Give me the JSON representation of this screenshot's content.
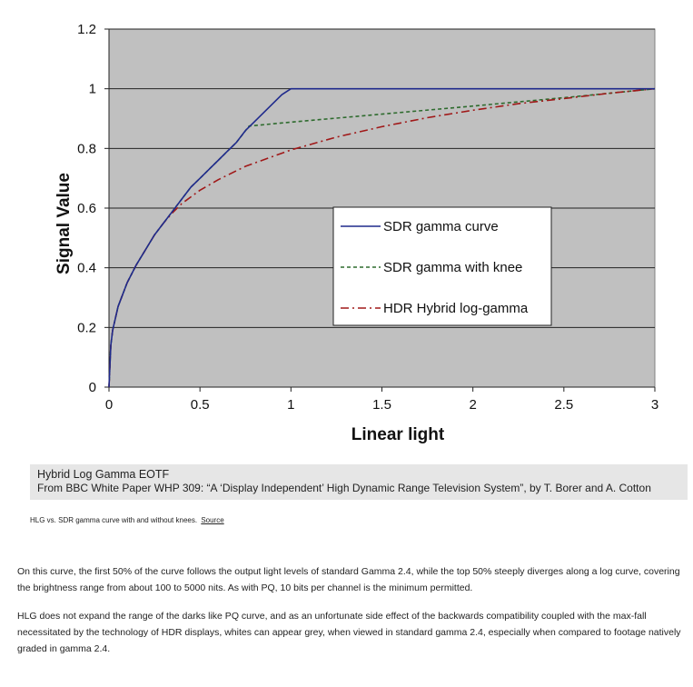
{
  "chart_data": {
    "type": "line",
    "xlabel": "Linear light",
    "ylabel": "Signal Value",
    "xlim": [
      0,
      3
    ],
    "ylim": [
      0,
      1.2
    ],
    "x_ticks": [
      "0",
      "0.5",
      "1",
      "1.5",
      "2",
      "2.5",
      "3"
    ],
    "y_ticks": [
      "0",
      "0.2",
      "0.4",
      "0.6",
      "0.8",
      "1",
      "1.2"
    ],
    "grid": "horizontal",
    "background": "#c0c0c0",
    "legend_position": "center-right",
    "series": [
      {
        "name": "SDR gamma curve",
        "color": "#1f2a8c",
        "style": "solid",
        "x": [
          0,
          0.01,
          0.02,
          0.05,
          0.1,
          0.15,
          0.2,
          0.25,
          0.3,
          0.35,
          0.4,
          0.45,
          0.5,
          0.55,
          0.6,
          0.65,
          0.7,
          0.75,
          0.8,
          0.85,
          0.9,
          0.95,
          1.0,
          1.5,
          2.0,
          2.5,
          3.0
        ],
        "y": [
          0,
          0.14,
          0.19,
          0.27,
          0.35,
          0.41,
          0.46,
          0.51,
          0.55,
          0.59,
          0.63,
          0.67,
          0.7,
          0.73,
          0.76,
          0.79,
          0.82,
          0.86,
          0.89,
          0.92,
          0.95,
          0.98,
          1.0,
          1.0,
          1.0,
          1.0,
          1.0
        ]
      },
      {
        "name": "SDR gamma with knee",
        "color": "#2e6b2e",
        "style": "dashed",
        "x": [
          0,
          0.01,
          0.02,
          0.05,
          0.1,
          0.15,
          0.2,
          0.25,
          0.3,
          0.35,
          0.4,
          0.45,
          0.5,
          0.55,
          0.6,
          0.65,
          0.7,
          0.77,
          1.0,
          1.5,
          2.0,
          2.5,
          3.0
        ],
        "y": [
          0,
          0.14,
          0.19,
          0.27,
          0.35,
          0.41,
          0.46,
          0.51,
          0.55,
          0.59,
          0.63,
          0.67,
          0.7,
          0.73,
          0.76,
          0.79,
          0.82,
          0.875,
          0.888,
          0.915,
          0.942,
          0.97,
          1.0
        ]
      },
      {
        "name": "HDR Hybrid log-gamma",
        "color": "#a01818",
        "style": "dash-dot",
        "x": [
          0,
          0.01,
          0.02,
          0.05,
          0.1,
          0.15,
          0.2,
          0.25,
          0.3,
          0.35,
          0.4,
          0.5,
          0.6,
          0.75,
          1.0,
          1.25,
          1.5,
          1.75,
          2.0,
          2.25,
          2.5,
          2.75,
          3.0
        ],
        "y": [
          0,
          0.14,
          0.19,
          0.27,
          0.35,
          0.41,
          0.46,
          0.51,
          0.55,
          0.585,
          0.615,
          0.66,
          0.695,
          0.74,
          0.795,
          0.838,
          0.873,
          0.903,
          0.928,
          0.95,
          0.967,
          0.985,
          1.0
        ]
      }
    ]
  },
  "caption": {
    "title": "Hybrid Log Gamma EOTF",
    "subtitle": "From BBC White Paper WHP 309: “A ‘Display Independent’ High Dynamic Range Television System”, by T. Borer and A. Cotton"
  },
  "figure_note": {
    "text": "HLG vs. SDR gamma curve with and without knees.",
    "link": "Source"
  },
  "paragraphs": [
    "On this curve, the first 50% of the curve follows the output light levels of standard Gamma 2.4, while the top 50% steeply diverges along a log curve, covering the brightness range from about 100 to 5000 nits. As with PQ, 10 bits per channel is the minimum permitted.",
    "HLG does not expand the range of the darks like PQ curve, and as an unfortunate side effect of the backwards compatibility coupled with the max-fall necessitated by the technology of HDR displays, whites can appear grey, when viewed in standard gamma 2.4, especially when compared to footage natively graded in gamma 2.4."
  ]
}
